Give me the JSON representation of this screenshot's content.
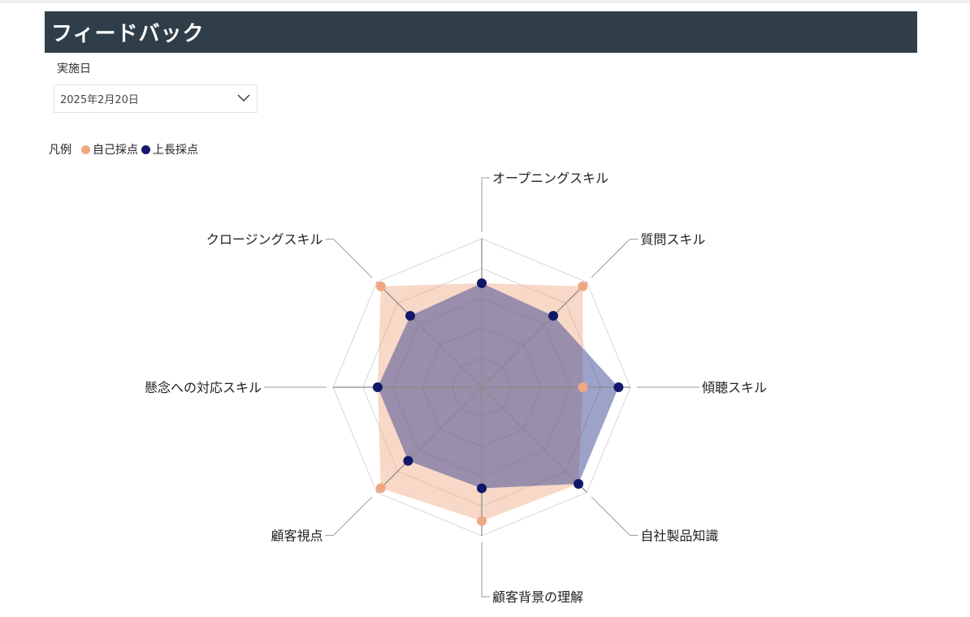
{
  "header": {
    "title": "フィードバック"
  },
  "filter": {
    "label": "実施日",
    "selected": "2025年2月20日"
  },
  "legend": {
    "title": "凡例",
    "items": [
      {
        "label": "自己採点",
        "color": "#f0a882"
      },
      {
        "label": "上長採点",
        "color": "#12196b"
      }
    ]
  },
  "chart_data": {
    "type": "radar",
    "categories": [
      "オープニングスキル",
      "質問スキル",
      "傾聴スキル",
      "自社製品知識",
      "顧客背景の理解",
      "顧客視点",
      "懸念への対応スキル",
      "クロージングスキル"
    ],
    "rlim": [
      0,
      5
    ],
    "grid": true,
    "legend_position": "top-left",
    "series": [
      {
        "name": "自己採点",
        "color": "#f0a882",
        "values": [
          3.5,
          4.8,
          3.4,
          4.6,
          4.5,
          4.8,
          3.5,
          4.8
        ]
      },
      {
        "name": "上長採点",
        "color": "#12196b",
        "values": [
          3.5,
          3.4,
          4.6,
          4.6,
          3.4,
          3.5,
          3.5,
          3.4
        ]
      }
    ]
  }
}
